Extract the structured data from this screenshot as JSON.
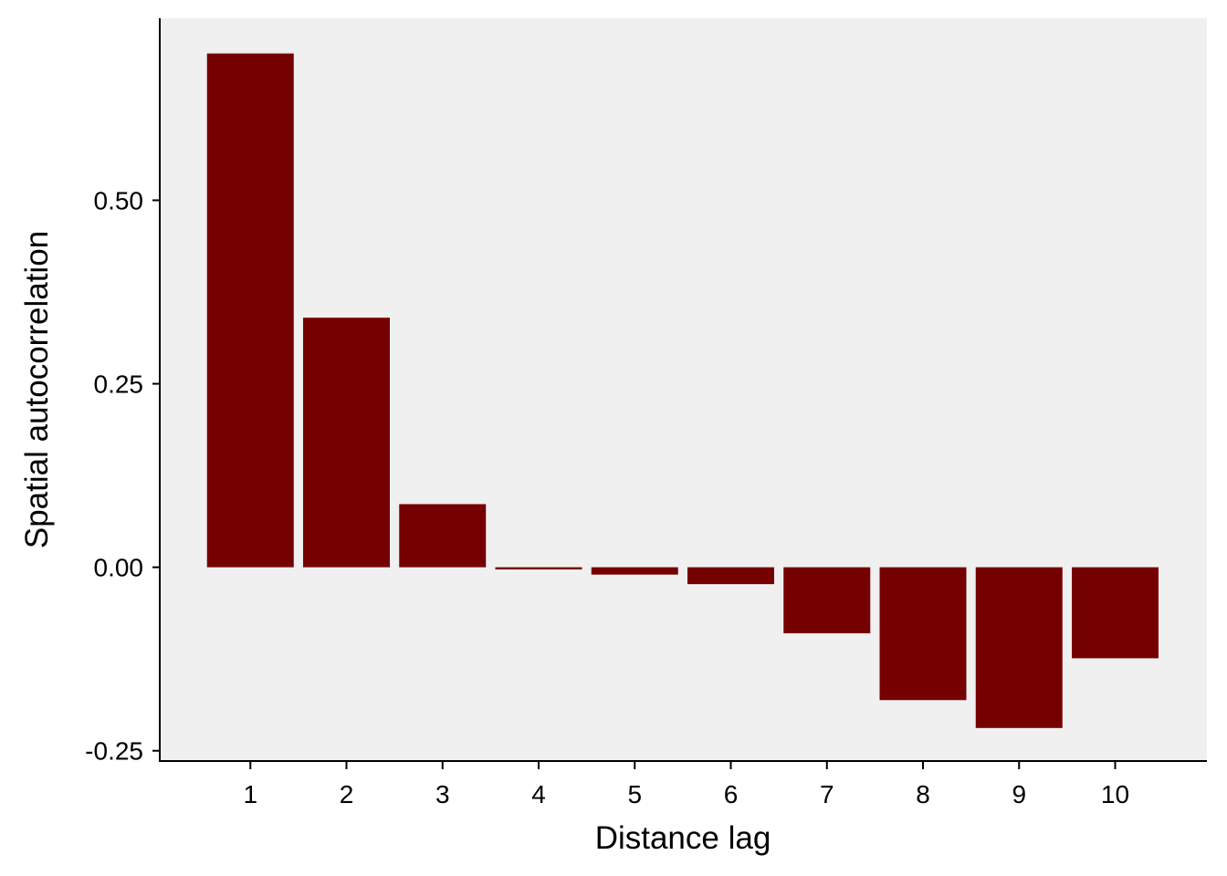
{
  "chart_data": {
    "type": "bar",
    "xlabel": "Distance lag",
    "ylabel": "Spatial autocorrelation",
    "categories": [
      "1",
      "2",
      "3",
      "4",
      "5",
      "6",
      "7",
      "8",
      "9",
      "10"
    ],
    "values": [
      0.7,
      0.34,
      0.086,
      -0.003,
      -0.01,
      -0.023,
      -0.09,
      -0.181,
      -0.219,
      -0.124
    ],
    "ylim": [
      -0.264,
      0.748
    ],
    "yticks": [
      -0.25,
      0.0,
      0.25,
      0.5
    ],
    "ytick_labels": [
      "-0.25",
      "0.00",
      "0.25",
      "0.50"
    ],
    "grid": false,
    "bar_color": "#750000",
    "panel_background": "#f0f0f0"
  }
}
